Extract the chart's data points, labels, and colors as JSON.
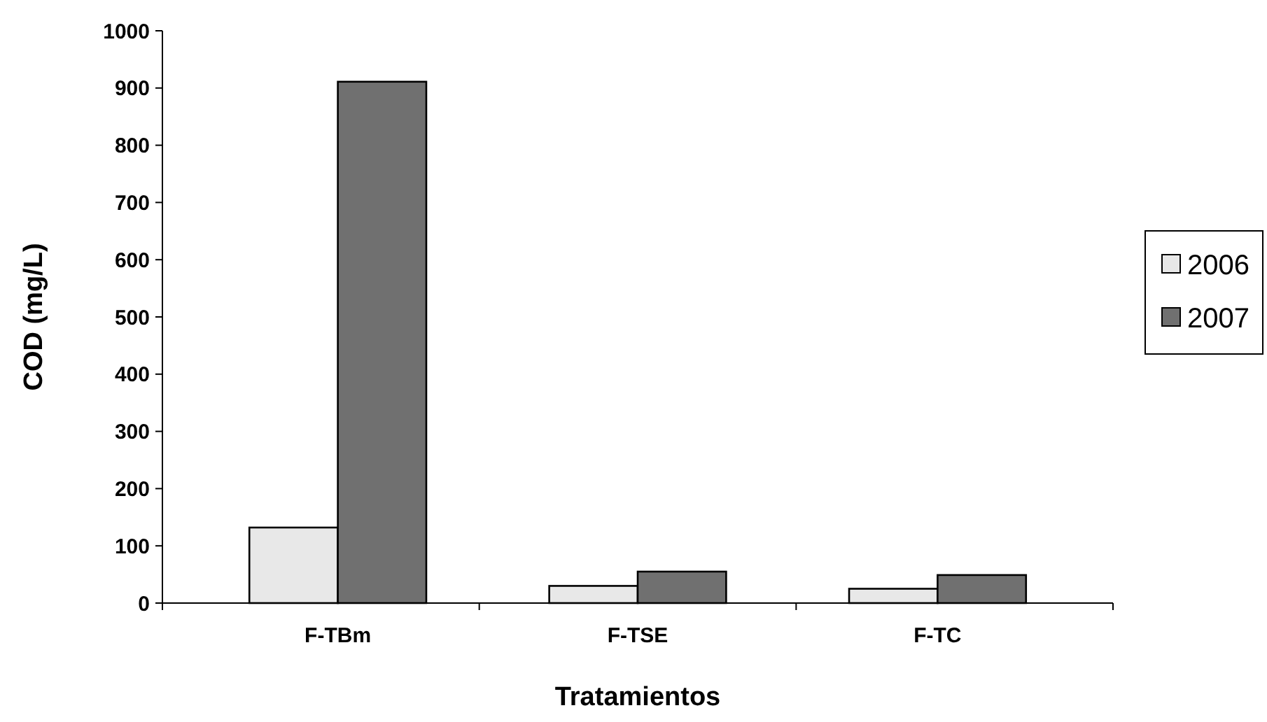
{
  "chart_data": {
    "type": "bar",
    "xlabel": "Tratamientos",
    "ylabel": "COD (mg/L)",
    "categories": [
      "F-TBm",
      "F-TSE",
      "F-TC"
    ],
    "series": [
      {
        "name": "2006",
        "color": "#e8e8e8",
        "values": [
          132,
          30,
          25
        ]
      },
      {
        "name": "2007",
        "color": "#707070",
        "values": [
          911,
          55,
          49
        ]
      }
    ],
    "ylim": [
      0,
      1000
    ],
    "yticks": [
      0,
      100,
      200,
      300,
      400,
      500,
      600,
      700,
      800,
      900,
      1000
    ],
    "grid": false,
    "legend": "right"
  }
}
